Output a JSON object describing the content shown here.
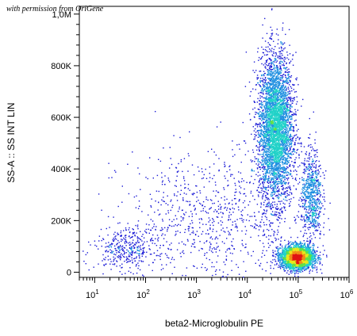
{
  "watermark": "with permission from OriGene",
  "chart_data": {
    "type": "scatter",
    "title": "",
    "xlabel": "beta2-Microglobulin PE",
    "ylabel": "SS-A :: SS INT LIN",
    "x_scale": "log",
    "xlim": [
      5,
      1000000
    ],
    "ylim": [
      -20000,
      1030000
    ],
    "x_ticks": [
      {
        "value": 10,
        "base": "10",
        "exp": "1"
      },
      {
        "value": 100,
        "base": "10",
        "exp": "2"
      },
      {
        "value": 1000,
        "base": "10",
        "exp": "3"
      },
      {
        "value": 10000,
        "base": "10",
        "exp": "4"
      },
      {
        "value": 100000,
        "base": "10",
        "exp": "5"
      },
      {
        "value": 1000000,
        "base": "10",
        "exp": "6"
      }
    ],
    "y_ticks": [
      {
        "value": 0,
        "label": "0"
      },
      {
        "value": 200000,
        "label": "200K"
      },
      {
        "value": 400000,
        "label": "400K"
      },
      {
        "value": 600000,
        "label": "600K"
      },
      {
        "value": 800000,
        "label": "800K"
      },
      {
        "value": 1000000,
        "label": "1,0M"
      }
    ],
    "populations": [
      {
        "center_x": 35000,
        "center_y": 560000,
        "spread_log_x": 0.17,
        "spread_y": 140000,
        "count": 4200
      },
      {
        "center_x": 95000,
        "center_y": 60000,
        "spread_log_x": 0.16,
        "spread_y": 22000,
        "count": 3200
      },
      {
        "center_x": 180000,
        "center_y": 300000,
        "spread_log_x": 0.1,
        "spread_y": 90000,
        "count": 700
      },
      {
        "center_x": 40,
        "center_y": 90000,
        "spread_log_x": 0.3,
        "spread_y": 40000,
        "count": 350
      },
      {
        "center_x": 2000,
        "center_y": 200000,
        "spread_log_x": 0.9,
        "spread_y": 140000,
        "count": 900
      }
    ],
    "density_colormap": [
      "#1b1bd6",
      "#1f8fe0",
      "#21d2c8",
      "#5fe04a",
      "#e8e81c",
      "#f28c18",
      "#e01414"
    ]
  }
}
